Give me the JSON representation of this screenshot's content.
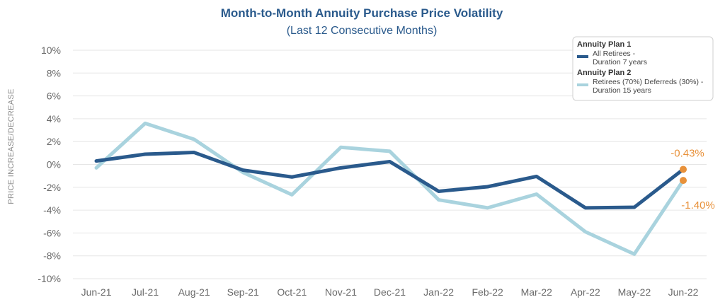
{
  "chart_data": {
    "type": "line",
    "title": "Month-to-Month Annuity Purchase Price Volatility",
    "subtitle": "(Last 12 Consecutive Months)",
    "xlabel": "",
    "ylabel": "PRICE INCREASE/DECREASE",
    "ylim": [
      -10,
      10
    ],
    "yticks": [
      "-10%",
      "-8%",
      "-6%",
      "-4%",
      "-2%",
      "0%",
      "2%",
      "4%",
      "6%",
      "8%",
      "10%"
    ],
    "categories": [
      "Jun-21",
      "Jul-21",
      "Aug-21",
      "Sep-21",
      "Oct-21",
      "Nov-21",
      "Dec-21",
      "Jan-22",
      "Feb-22",
      "Mar-22",
      "Apr-22",
      "May-22",
      "Jun-22"
    ],
    "series": [
      {
        "name": "Annuity Plan 1",
        "description": [
          "All Retirees -",
          "Duration 7 years"
        ],
        "color": "#2a5a8c",
        "values": [
          0.3,
          0.9,
          1.05,
          -0.5,
          -1.1,
          -0.3,
          0.25,
          -2.35,
          -1.95,
          -1.05,
          -3.8,
          -3.75,
          -0.43
        ]
      },
      {
        "name": "Annuity Plan 2",
        "description": [
          "Retirees (70%) Deferreds (30%) -",
          "Duration 15 years"
        ],
        "color": "#a9d3de",
        "values": [
          -0.3,
          3.6,
          2.2,
          -0.7,
          -2.65,
          1.5,
          1.15,
          -3.1,
          -3.8,
          -2.6,
          -5.9,
          -7.85,
          -1.4
        ]
      }
    ],
    "data_labels": [
      {
        "series": 0,
        "index": 12,
        "text": "-0.43%"
      },
      {
        "series": 1,
        "index": 12,
        "text": "-1.40%"
      }
    ],
    "label_color": "#e8913a",
    "grid": true,
    "legend_position": "top-right"
  }
}
